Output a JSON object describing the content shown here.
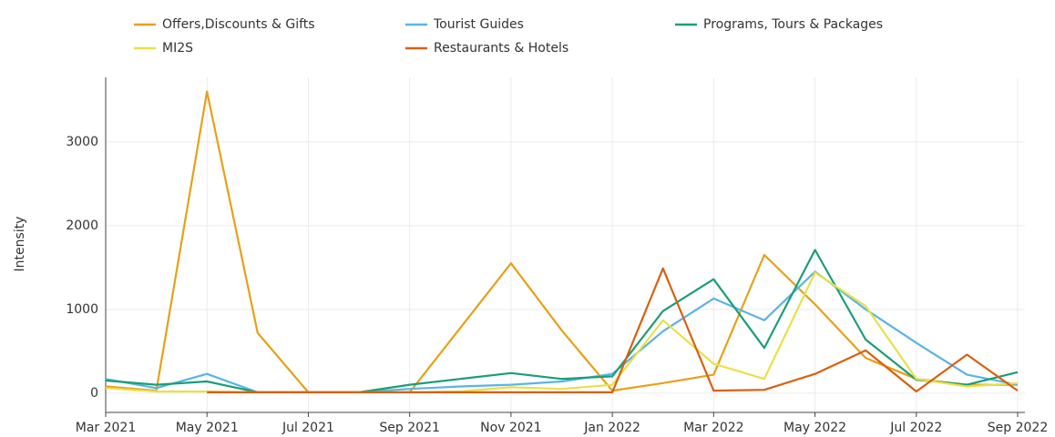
{
  "chart_data": {
    "type": "line",
    "y_label": "Intensity",
    "x": [
      "2021-03",
      "2021-04",
      "2021-05",
      "2021-06",
      "2021-07",
      "2021-08",
      "2021-09",
      "2021-10",
      "2021-11",
      "2021-12",
      "2022-01",
      "2022-02",
      "2022-03",
      "2022-04",
      "2022-05",
      "2022-06",
      "2022-07",
      "2022-08",
      "2022-09"
    ],
    "series": [
      {
        "name": "Offers,Discounts & Gifts",
        "color": "#e6a118",
        "values": [
          80,
          30,
          3600,
          720,
          10,
          10,
          10,
          780,
          1550,
          750,
          30,
          120,
          220,
          1650,
          1060,
          420,
          170,
          100,
          100
        ]
      },
      {
        "name": "Tourist Guides",
        "color": "#5ab4e5",
        "values": [
          170,
          60,
          230,
          10,
          10,
          10,
          50,
          80,
          100,
          140,
          230,
          740,
          1130,
          870,
          1450,
          1000,
          600,
          220,
          100
        ]
      },
      {
        "name": "Programs, Tours & Packages",
        "color": "#1a9e77",
        "values": [
          150,
          100,
          140,
          10,
          10,
          10,
          100,
          170,
          240,
          170,
          200,
          980,
          1360,
          540,
          1710,
          640,
          160,
          100,
          250
        ]
      },
      {
        "name": "MI2S",
        "color": "#e8e04a",
        "values": [
          60,
          20,
          20,
          10,
          10,
          10,
          10,
          20,
          70,
          50,
          100,
          870,
          350,
          170,
          1440,
          1040,
          170,
          80,
          120
        ]
      },
      {
        "name": "Restaurants & Hotels",
        "color": "#d95f0e",
        "values": [
          null,
          null,
          10,
          10,
          10,
          10,
          10,
          10,
          10,
          10,
          10,
          1490,
          30,
          40,
          230,
          510,
          20,
          460,
          30
        ]
      }
    ],
    "xlim": [
      "2021-03",
      "2022-09"
    ],
    "xticks": [
      {
        "value": "2021-03",
        "label": "Mar 2021"
      },
      {
        "value": "2021-05",
        "label": "May 2021"
      },
      {
        "value": "2021-07",
        "label": "Jul 2021"
      },
      {
        "value": "2021-09",
        "label": "Sep 2021"
      },
      {
        "value": "2021-11",
        "label": "Nov 2021"
      },
      {
        "value": "2022-01",
        "label": "Jan 2022"
      },
      {
        "value": "2022-03",
        "label": "Mar 2022"
      },
      {
        "value": "2022-05",
        "label": "May 2022"
      },
      {
        "value": "2022-07",
        "label": "Jul 2022"
      },
      {
        "value": "2022-09",
        "label": "Sep 2022"
      }
    ],
    "ylim": [
      -230,
      3770
    ],
    "yticks": [
      0,
      1000,
      2000,
      3000
    ],
    "grid": true,
    "legend": "top"
  }
}
